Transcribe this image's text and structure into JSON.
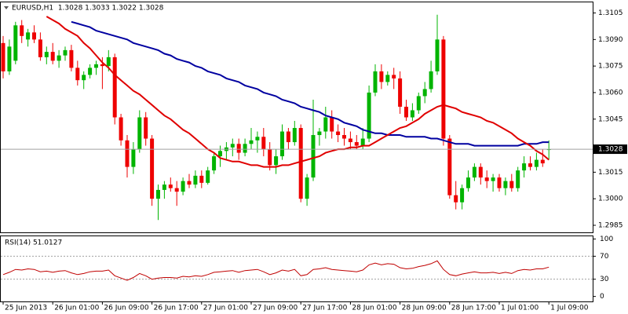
{
  "chart_data": {
    "type": "candlestick",
    "title": "EURUSD,H1  1.3028 1.3033 1.3022 1.3028",
    "categories": [
      "25 Jun 2013",
      null,
      null,
      null,
      null,
      null,
      null,
      null,
      "26 Jun 01:00",
      null,
      null,
      null,
      null,
      null,
      null,
      null,
      "26 Jun 09:00",
      null,
      null,
      null,
      null,
      null,
      null,
      null,
      "26 Jun 17:00",
      null,
      null,
      null,
      null,
      null,
      null,
      null,
      "27 Jun 01:00",
      null,
      null,
      null,
      null,
      null,
      null,
      null,
      "27 Jun 09:00",
      null,
      null,
      null,
      null,
      null,
      null,
      null,
      "27 Jun 17:00",
      null,
      null,
      null,
      null,
      null,
      null,
      null,
      "28 Jun 01:00",
      null,
      null,
      null,
      null,
      null,
      null,
      null,
      "28 Jun 09:00",
      null,
      null,
      null,
      null,
      null,
      null,
      null,
      "28 Jun 17:00",
      null,
      null,
      null,
      null,
      null,
      null,
      null,
      "1 Jul 01:00",
      null,
      null,
      null,
      null,
      null,
      null,
      null,
      "1 Jul 09:00"
    ],
    "open": [
      1.3088,
      1.3072,
      1.3078,
      1.3098,
      1.309,
      1.3094,
      1.309,
      1.308,
      1.3083,
      1.3078,
      1.3081,
      1.3084,
      1.3074,
      1.3067,
      1.307,
      1.3074,
      1.3076,
      1.3075,
      1.308,
      1.3046,
      1.3033,
      1.3018,
      1.3028,
      1.3046,
      1.3034,
      1.3,
      1.3005,
      1.3008,
      1.3006,
      1.3004,
      1.301,
      1.3008,
      1.3013,
      1.3009,
      1.3016,
      1.3024,
      1.3027,
      1.3029,
      1.3031,
      1.3026,
      1.3031,
      1.3033,
      1.3035,
      1.3028,
      1.3019,
      1.3024,
      1.3038,
      1.3032,
      1.304,
      1.3,
      1.3012,
      1.3036,
      1.3038,
      1.3046,
      1.3038,
      1.3036,
      1.3034,
      1.3032,
      1.303,
      1.3034,
      1.306,
      1.3072,
      1.3066,
      1.307,
      1.3068,
      1.3052,
      1.3046,
      1.305,
      1.3058,
      1.3062,
      1.3072,
      1.309,
      1.3034,
      1.3002,
      1.2998,
      1.3006,
      1.3012,
      1.3018,
      1.3012,
      1.301,
      1.3012,
      1.3006,
      1.301,
      1.3006,
      1.3016,
      1.302,
      1.3018,
      1.3022,
      1.3028
    ],
    "high": [
      1.3092,
      1.309,
      1.31,
      1.3101,
      1.3096,
      1.3098,
      1.3094,
      1.3086,
      1.3088,
      1.3084,
      1.3086,
      1.3087,
      1.3078,
      1.3072,
      1.3076,
      1.3078,
      1.308,
      1.3084,
      1.3082,
      1.3048,
      1.3036,
      1.3032,
      1.305,
      1.3049,
      1.3036,
      1.3008,
      1.301,
      1.3012,
      1.301,
      1.3012,
      1.3014,
      1.3016,
      1.3016,
      1.3018,
      1.3026,
      1.303,
      1.3032,
      1.3034,
      1.3034,
      1.3034,
      1.304,
      1.3038,
      1.304,
      1.3032,
      1.3028,
      1.3042,
      1.304,
      1.3044,
      1.3042,
      1.3014,
      1.3056,
      1.304,
      1.3052,
      1.305,
      1.3042,
      1.304,
      1.3038,
      1.3036,
      1.304,
      1.3064,
      1.3076,
      1.3076,
      1.3072,
      1.3074,
      1.3072,
      1.3056,
      1.3054,
      1.306,
      1.3066,
      1.3078,
      1.3104,
      1.3092,
      1.3036,
      1.301,
      1.3008,
      1.3016,
      1.302,
      1.302,
      1.3016,
      1.3014,
      1.3014,
      1.3012,
      1.3014,
      1.3018,
      1.3024,
      1.3024,
      1.3026,
      1.3028,
      1.3033
    ],
    "low": [
      1.3068,
      1.307,
      1.3076,
      1.3088,
      1.3086,
      1.3088,
      1.3078,
      1.3076,
      1.3076,
      1.3074,
      1.3078,
      1.3072,
      1.3064,
      1.3062,
      1.3068,
      1.307,
      1.3062,
      1.3072,
      1.3042,
      1.303,
      1.3012,
      1.3014,
      1.3026,
      1.303,
      1.2996,
      1.2988,
      1.3,
      1.3004,
      1.2996,
      1.3002,
      1.3006,
      1.3006,
      1.3006,
      1.3008,
      1.3014,
      1.3018,
      1.3022,
      1.3024,
      1.3022,
      1.3024,
      1.3028,
      1.3026,
      1.3024,
      1.3016,
      1.3014,
      1.3022,
      1.3028,
      1.303,
      1.2998,
      1.2996,
      1.301,
      1.303,
      1.3034,
      1.3034,
      1.3032,
      1.303,
      1.3028,
      1.3028,
      1.3028,
      1.3032,
      1.3058,
      1.3062,
      1.3064,
      1.3062,
      1.3048,
      1.3044,
      1.3044,
      1.3048,
      1.3054,
      1.306,
      1.307,
      1.303,
      1.3,
      1.2994,
      1.2994,
      1.3004,
      1.301,
      1.3008,
      1.3006,
      1.3004,
      1.3004,
      1.3002,
      1.3004,
      1.3004,
      1.3012,
      1.3016,
      1.3016,
      1.3018,
      1.3022
    ],
    "close": [
      1.3072,
      1.3086,
      1.3098,
      1.3092,
      1.3094,
      1.309,
      1.308,
      1.3083,
      1.3078,
      1.3081,
      1.3084,
      1.3074,
      1.3067,
      1.307,
      1.3074,
      1.3076,
      1.3075,
      1.308,
      1.3046,
      1.3033,
      1.3018,
      1.3028,
      1.3046,
      1.3034,
      1.3,
      1.3005,
      1.3008,
      1.3006,
      1.3004,
      1.301,
      1.3008,
      1.3013,
      1.3009,
      1.3016,
      1.3024,
      1.3027,
      1.3029,
      1.3031,
      1.3026,
      1.3031,
      1.3033,
      1.3035,
      1.3028,
      1.3019,
      1.3024,
      1.3038,
      1.3032,
      1.304,
      1.3,
      1.3012,
      1.3036,
      1.3038,
      1.3046,
      1.3038,
      1.3036,
      1.3034,
      1.3032,
      1.303,
      1.3034,
      1.306,
      1.3072,
      1.3066,
      1.307,
      1.3068,
      1.3052,
      1.3046,
      1.305,
      1.3058,
      1.3062,
      1.3072,
      1.309,
      1.3034,
      1.3002,
      1.2998,
      1.3006,
      1.3012,
      1.3018,
      1.3012,
      1.301,
      1.3012,
      1.3006,
      1.301,
      1.3006,
      1.3016,
      1.302,
      1.3018,
      1.3022,
      1.302,
      1.3028
    ],
    "up_color": "#00b400",
    "down_color": "#ee0000",
    "lines": [
      {
        "color": "#0000a0",
        "values": [
          null,
          null,
          null,
          null,
          null,
          null,
          null,
          null,
          null,
          null,
          null,
          1.31,
          1.3099,
          1.3098,
          1.3097,
          1.3095,
          1.3094,
          1.3093,
          1.3092,
          1.3091,
          1.309,
          1.3088,
          1.3087,
          1.3086,
          1.3085,
          1.3084,
          1.3082,
          1.3081,
          1.3079,
          1.3078,
          1.3077,
          1.3075,
          1.3074,
          1.3072,
          1.3071,
          1.307,
          1.3068,
          1.3067,
          1.3066,
          1.3064,
          1.3063,
          1.3062,
          1.306,
          1.3059,
          1.3058,
          1.3056,
          1.3055,
          1.3054,
          1.3052,
          1.3051,
          1.305,
          1.3049,
          1.3047,
          1.3046,
          1.3045,
          1.3043,
          1.3042,
          1.3041,
          1.3039,
          1.3038,
          1.3037,
          1.3037,
          1.3036,
          1.3036,
          1.3036,
          1.3035,
          1.3035,
          1.3035,
          1.3035,
          1.3034,
          1.3034,
          1.3033,
          1.3032,
          1.3031,
          1.3031,
          1.3031,
          1.303,
          1.303,
          1.303,
          1.303,
          1.303,
          1.303,
          1.303,
          1.303,
          1.3031,
          1.3031,
          1.3031,
          1.3032,
          1.3032
        ]
      },
      {
        "color": "#e00000",
        "values": [
          null,
          null,
          null,
          null,
          null,
          null,
          null,
          1.3103,
          1.3101,
          1.3099,
          1.3096,
          1.3094,
          1.3092,
          1.3088,
          1.3085,
          1.3081,
          1.3077,
          1.3074,
          1.307,
          1.3067,
          1.3064,
          1.3061,
          1.3059,
          1.3056,
          1.3053,
          1.305,
          1.3047,
          1.3045,
          1.3042,
          1.3039,
          1.3037,
          1.3034,
          1.3031,
          1.3028,
          1.3026,
          1.3023,
          1.3022,
          1.3021,
          1.3021,
          1.302,
          1.3019,
          1.3019,
          1.3018,
          1.3018,
          1.3018,
          1.3019,
          1.3019,
          1.302,
          1.3021,
          1.3022,
          1.3023,
          1.3024,
          1.3026,
          1.3027,
          1.3028,
          1.3028,
          1.3029,
          1.3029,
          1.303,
          1.303,
          1.3032,
          1.3034,
          1.3036,
          1.3038,
          1.304,
          1.3041,
          1.3043,
          1.3045,
          1.3048,
          1.305,
          1.3052,
          1.3053,
          1.3052,
          1.3051,
          1.3049,
          1.3048,
          1.3047,
          1.3046,
          1.3044,
          1.3043,
          1.3041,
          1.3039,
          1.3037,
          1.3034,
          1.3032,
          1.303,
          1.3027,
          1.3025,
          1.3022
        ]
      }
    ],
    "current_price": 1.3028,
    "ylim": [
      1.2981,
      1.3111
    ],
    "yticks": [
      1.3105,
      {
        "value": 1.309,
        "label": "1.3090"
      },
      1.3075,
      {
        "value": 1.306,
        "label": "1.3060"
      },
      1.3045,
      1.3015,
      {
        "value": 1.3,
        "label": "1.3000"
      },
      1.2985
    ],
    "rsi": {
      "title": "RSI(14) 51.0127",
      "color": "#c00000",
      "values": [
        38,
        42,
        47,
        46,
        48,
        47,
        43,
        44,
        42,
        44,
        45,
        41,
        38,
        40,
        43,
        44,
        44,
        46,
        36,
        32,
        28,
        33,
        40,
        36,
        30,
        32,
        33,
        33,
        32,
        35,
        34,
        36,
        35,
        38,
        42,
        43,
        44,
        45,
        42,
        45,
        46,
        47,
        43,
        38,
        41,
        46,
        44,
        47,
        36,
        38,
        47,
        48,
        50,
        47,
        46,
        45,
        44,
        43,
        46,
        55,
        58,
        55,
        57,
        56,
        50,
        48,
        49,
        52,
        54,
        57,
        62,
        47,
        38,
        36,
        39,
        41,
        43,
        41,
        41,
        42,
        40,
        42,
        40,
        45,
        47,
        46,
        48,
        48,
        51.0127
      ],
      "ylim": [
        -8.7,
        104.7
      ],
      "yticks": [
        100,
        70,
        30,
        0
      ],
      "levels": [
        70,
        30
      ]
    }
  }
}
